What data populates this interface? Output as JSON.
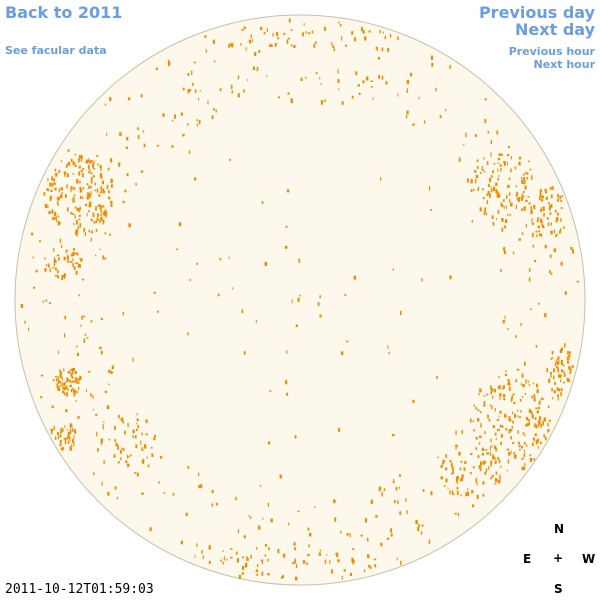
{
  "nav": {
    "back_to_year": "Back to 2011",
    "facular_data": "See facular data",
    "previous_day": "Previous day",
    "next_day": "Next day",
    "previous_hour": "Previous hour",
    "next_hour": "Next hour"
  },
  "timestamp": "2011-10-12T01:59:03",
  "compass": {
    "north": "N",
    "south": "S",
    "east": "E",
    "west": "W",
    "center": "+"
  },
  "colors": {
    "disk_fill": "#fdf8ec",
    "disk_stroke": "#c8bfa8",
    "facula": "#f08c00",
    "link": "#6b9ee0"
  }
}
